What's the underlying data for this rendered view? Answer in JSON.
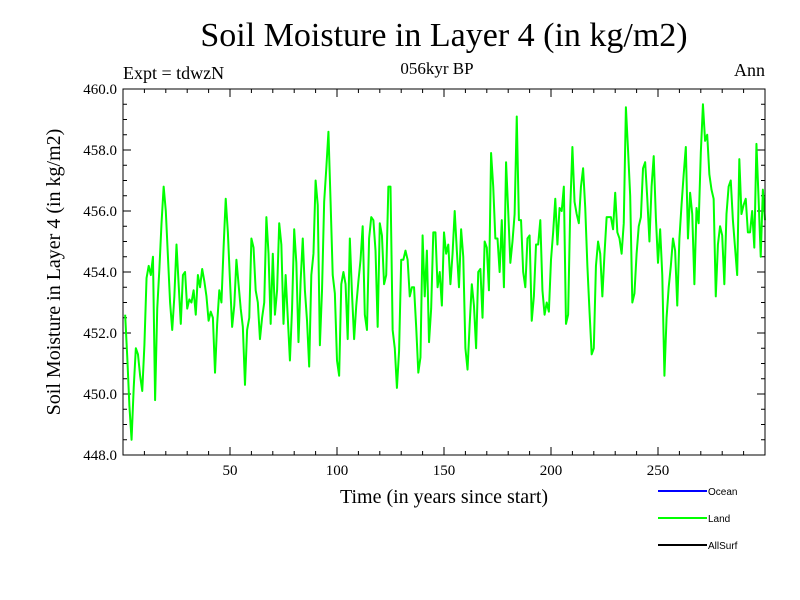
{
  "chart_data": {
    "type": "line",
    "title": "Soil Moisture in Layer 4 (in kg/m2)",
    "subtitle": "056kyr BP",
    "expt_label": "Expt = tdwzN",
    "period_label": "Ann",
    "xlabel": "Time (in years since start)",
    "ylabel": "Soil Moisture in Layer 4 (in kg/m2)",
    "xlim": [
      0,
      300
    ],
    "ylim": [
      448.0,
      460.0
    ],
    "xticks": [
      50,
      100,
      150,
      200,
      250
    ],
    "xtick_labels": [
      "50",
      "100",
      "150",
      "200",
      "250"
    ],
    "yticks": [
      448.0,
      450.0,
      452.0,
      454.0,
      456.0,
      458.0,
      460.0
    ],
    "ytick_labels": [
      "448.0",
      "450.0",
      "452.0",
      "454.0",
      "456.0",
      "458.0",
      "460.0"
    ],
    "series": [
      {
        "name": "Ocean",
        "color": "#0000ff",
        "x": [],
        "values": []
      },
      {
        "name": "Land",
        "color": "#00ff00",
        "x": [
          1,
          2,
          3,
          4,
          5,
          6,
          7,
          8,
          9,
          10,
          11,
          12,
          13,
          14,
          15,
          16,
          17,
          18,
          19,
          20,
          21,
          22,
          23,
          24,
          25,
          26,
          27,
          28,
          29,
          30,
          31,
          32,
          33,
          34,
          35,
          36,
          37,
          38,
          39,
          40,
          41,
          42,
          43,
          44,
          45,
          46,
          47,
          48,
          49,
          50,
          51,
          52,
          53,
          54,
          55,
          56,
          57,
          58,
          59,
          60,
          61,
          62,
          63,
          64,
          65,
          66,
          67,
          68,
          69,
          70,
          71,
          72,
          73,
          74,
          75,
          76,
          77,
          78,
          79,
          80,
          81,
          82,
          83,
          84,
          85,
          86,
          87,
          88,
          89,
          90,
          91,
          92,
          93,
          94,
          95,
          96,
          97,
          98,
          99,
          100,
          101,
          102,
          103,
          104,
          105,
          106,
          107,
          108,
          109,
          110,
          111,
          112,
          113,
          114,
          115,
          116,
          117,
          118,
          119,
          120,
          121,
          122,
          123,
          124,
          125,
          126,
          127,
          128,
          129,
          130,
          131,
          132,
          133,
          134,
          135,
          136,
          137,
          138,
          139,
          140,
          141,
          142,
          143,
          144,
          145,
          146,
          147,
          148,
          149,
          150,
          151,
          152,
          153,
          154,
          155,
          156,
          157,
          158,
          159,
          160,
          161,
          162,
          163,
          164,
          165,
          166,
          167,
          168,
          169,
          170,
          171,
          172,
          173,
          174,
          175,
          176,
          177,
          178,
          179,
          180,
          181,
          182,
          183,
          184,
          185,
          186,
          187,
          188,
          189,
          190,
          191,
          192,
          193,
          194,
          195,
          196,
          197,
          198,
          199,
          200,
          201,
          202,
          203,
          204,
          205,
          206,
          207,
          208,
          209,
          210,
          211,
          212,
          213,
          214,
          215,
          216,
          217,
          218,
          219,
          220,
          221,
          222,
          223,
          224,
          225,
          226,
          227,
          228,
          229,
          230,
          231,
          232,
          233,
          234,
          235,
          236,
          237,
          238,
          239,
          240,
          241,
          242,
          243,
          244,
          245,
          246,
          247,
          248,
          249,
          250,
          251,
          252,
          253,
          254,
          255,
          256,
          257,
          258,
          259,
          260,
          261,
          262,
          263,
          264,
          265,
          266,
          267,
          268,
          269,
          270,
          271,
          272,
          273,
          274,
          275,
          276,
          277,
          278,
          279,
          280,
          281,
          282,
          283,
          284,
          285,
          286,
          287,
          288,
          289,
          290,
          291,
          292,
          293,
          294,
          295,
          296,
          297,
          298,
          299,
          300
        ],
        "values": [
          452.6,
          451.2,
          449.6,
          448.5,
          450.2,
          451.5,
          451.3,
          450.6,
          450.1,
          451.6,
          453.8,
          454.2,
          453.9,
          454.5,
          449.8,
          452.8,
          454.1,
          455.6,
          456.8,
          456.0,
          454.5,
          453.0,
          452.1,
          453.2,
          454.9,
          453.6,
          452.3,
          453.9,
          454.0,
          452.8,
          453.1,
          453.0,
          453.4,
          452.6,
          453.9,
          453.5,
          454.1,
          453.7,
          453.2,
          452.4,
          452.7,
          452.5,
          450.7,
          452.3,
          453.4,
          453.0,
          454.8,
          456.4,
          455.3,
          453.7,
          452.2,
          452.9,
          454.4,
          453.6,
          452.8,
          452.2,
          450.3,
          452.1,
          452.5,
          455.1,
          454.8,
          453.4,
          453.0,
          451.8,
          452.5,
          453.0,
          455.8,
          454.6,
          452.3,
          454.6,
          452.6,
          453.4,
          455.6,
          454.9,
          452.3,
          453.9,
          452.5,
          451.1,
          452.8,
          455.4,
          454.3,
          451.7,
          453.7,
          455.1,
          453.4,
          452.4,
          450.9,
          453.9,
          454.6,
          457.0,
          456.2,
          451.6,
          453.4,
          456.3,
          457.4,
          458.6,
          456.3,
          453.9,
          453.3,
          451.1,
          450.6,
          453.6,
          454.0,
          453.6,
          451.8,
          455.1,
          453.3,
          451.8,
          452.9,
          453.7,
          454.4,
          455.5,
          452.6,
          452.1,
          455.1,
          455.8,
          455.7,
          454.7,
          452.2,
          455.6,
          455.2,
          453.6,
          453.9,
          456.8,
          456.8,
          452.1,
          451.5,
          450.2,
          451.4,
          454.4,
          454.4,
          454.7,
          454.4,
          453.2,
          453.5,
          453.5,
          452.2,
          450.7,
          451.2,
          455.2,
          453.2,
          454.7,
          451.7,
          452.8,
          455.3,
          455.3,
          453.5,
          454.0,
          452.9,
          455.3,
          454.6,
          454.9,
          453.6,
          454.6,
          456.0,
          454.7,
          453.5,
          455.4,
          454.5,
          451.5,
          450.8,
          452.3,
          453.6,
          452.9,
          451.5,
          454.0,
          454.1,
          452.5,
          455.0,
          454.8,
          453.4,
          457.9,
          456.8,
          455.1,
          455.1,
          454.0,
          455.7,
          453.5,
          457.6,
          456.0,
          454.3,
          455.0,
          455.9,
          459.1,
          455.7,
          455.7,
          454.0,
          453.5,
          455.1,
          455.2,
          452.4,
          453.2,
          454.9,
          454.9,
          455.7,
          453.4,
          452.6,
          453.0,
          452.7,
          454.4,
          455.3,
          456.4,
          454.9,
          456.1,
          456.0,
          456.8,
          452.3,
          452.6,
          456.1,
          458.1,
          456.3,
          455.9,
          455.6,
          456.8,
          457.4,
          456.1,
          454.2,
          452.7,
          451.3,
          451.5,
          454.2,
          455.0,
          454.6,
          453.2,
          454.6,
          455.8,
          455.8,
          455.8,
          455.4,
          456.6,
          455.3,
          455.1,
          454.6,
          455.6,
          459.4,
          458.0,
          456.5,
          453.0,
          453.3,
          454.6,
          455.5,
          455.8,
          457.4,
          457.6,
          456.4,
          455.0,
          456.8,
          457.8,
          455.8,
          454.3,
          455.4,
          453.9,
          450.6,
          452.5,
          453.5,
          454.2,
          455.1,
          454.7,
          452.9,
          455.1,
          456.2,
          457.2,
          458.1,
          455.1,
          456.6,
          455.9,
          453.6,
          456.1,
          455.6,
          457.9,
          459.5,
          458.3,
          458.5,
          457.2,
          456.7,
          456.4,
          453.2,
          454.9,
          455.5,
          455.2,
          453.6,
          455.9,
          456.8,
          457.0,
          455.7,
          454.8,
          453.9,
          457.7,
          455.9,
          456.2,
          456.4,
          455.3,
          455.3,
          456.0,
          454.8,
          458.2,
          456.4,
          454.5,
          456.7,
          455.7
        ]
      },
      {
        "name": "AllSurf",
        "color": "#000000",
        "x": [],
        "values": []
      }
    ],
    "legend": [
      "Ocean",
      "Land",
      "AllSurf"
    ],
    "legend_position": "bottom-right",
    "grid": false
  }
}
